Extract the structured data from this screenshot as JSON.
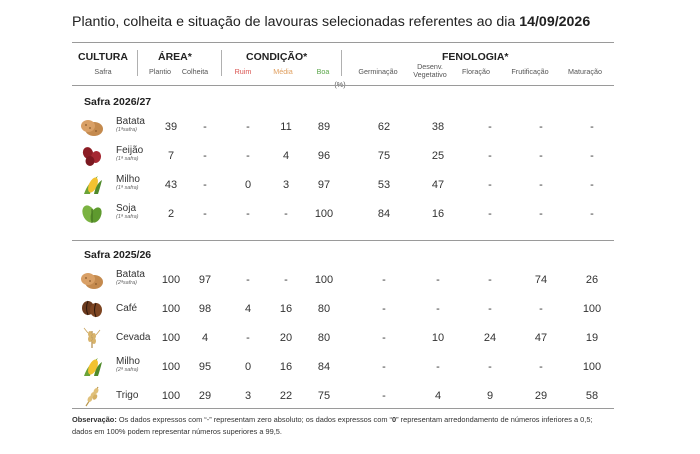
{
  "title_prefix": "Plantio, colheita e situação de lavouras selecionadas referentes ao dia ",
  "title_date": "14/09/2026",
  "header": {
    "cultura": "CULTURA",
    "safra": "Safra",
    "area": "ÁREA*",
    "plantio": "Plantio",
    "colheita": "Colheita",
    "condicao": "CONDIÇÃO*",
    "ruim": "Ruim",
    "media": "Média",
    "boa": "Boa",
    "fenologia": "FENOLOGIA*",
    "germinacao": "Germinação",
    "desenv": "Desenv. Vegetativo",
    "floracao": "Floração",
    "frutificacao": "Frutificação",
    "maturacao": "Maturação",
    "unit": "(%)"
  },
  "colors": {
    "ruim": "#d9534f",
    "media": "#e0a060",
    "boa": "#5aa64a"
  },
  "sections": [
    {
      "label": "Safra 2026/27",
      "rows": [
        {
          "icon": "potato-icon",
          "name": "Batata",
          "safra": "(1ªsafra)",
          "plantio": "39",
          "colheita": "-",
          "ruim": "-",
          "media": "11",
          "boa": "89",
          "germinacao": "62",
          "desenv": "38",
          "floracao": "-",
          "frutificacao": "-",
          "maturacao": "-"
        },
        {
          "icon": "bean-icon",
          "name": "Feijão",
          "safra": "(1ª safra)",
          "plantio": "7",
          "colheita": "-",
          "ruim": "-",
          "media": "4",
          "boa": "96",
          "germinacao": "75",
          "desenv": "25",
          "floracao": "-",
          "frutificacao": "-",
          "maturacao": "-"
        },
        {
          "icon": "corn-icon",
          "name": "Milho",
          "safra": "(1ª safra)",
          "plantio": "43",
          "colheita": "-",
          "ruim": "0",
          "media": "3",
          "boa": "97",
          "germinacao": "53",
          "desenv": "47",
          "floracao": "-",
          "frutificacao": "-",
          "maturacao": "-"
        },
        {
          "icon": "soy-icon",
          "name": "Soja",
          "safra": "(1ª safra)",
          "plantio": "2",
          "colheita": "-",
          "ruim": "-",
          "media": "-",
          "boa": "100",
          "germinacao": "84",
          "desenv": "16",
          "floracao": "-",
          "frutificacao": "-",
          "maturacao": "-"
        }
      ]
    },
    {
      "label": "Safra 2025/26",
      "rows": [
        {
          "icon": "potato-icon",
          "name": "Batata",
          "safra": "(2ªsafra)",
          "plantio": "100",
          "colheita": "97",
          "ruim": "-",
          "media": "-",
          "boa": "100",
          "germinacao": "-",
          "desenv": "-",
          "floracao": "-",
          "frutificacao": "74",
          "maturacao": "26"
        },
        {
          "icon": "coffee-icon",
          "name": "Café",
          "safra": "",
          "plantio": "100",
          "colheita": "98",
          "ruim": "4",
          "media": "16",
          "boa": "80",
          "germinacao": "-",
          "desenv": "-",
          "floracao": "-",
          "frutificacao": "-",
          "maturacao": "100"
        },
        {
          "icon": "barley-icon",
          "name": "Cevada",
          "safra": "",
          "plantio": "100",
          "colheita": "4",
          "ruim": "-",
          "media": "20",
          "boa": "80",
          "germinacao": "-",
          "desenv": "10",
          "floracao": "24",
          "frutificacao": "47",
          "maturacao": "19"
        },
        {
          "icon": "corn-icon",
          "name": "Milho",
          "safra": "(2ª safra)",
          "plantio": "100",
          "colheita": "95",
          "ruim": "0",
          "media": "16",
          "boa": "84",
          "germinacao": "-",
          "desenv": "-",
          "floracao": "-",
          "frutificacao": "-",
          "maturacao": "100"
        },
        {
          "icon": "wheat-icon",
          "name": "Trigo",
          "safra": "",
          "plantio": "100",
          "colheita": "29",
          "ruim": "3",
          "media": "22",
          "boa": "75",
          "germinacao": "-",
          "desenv": "4",
          "floracao": "9",
          "frutificacao": "29",
          "maturacao": "58"
        }
      ]
    }
  ],
  "note": {
    "label": "Observação:",
    "text1": " Os dados expressos com “-” representam zero absoluto; os dados expressos com “",
    "zero": "0",
    "text2": "” representam arredondamento de números inferiores a 0,5; dados em 100% podem representar números superiores a 99,5."
  }
}
